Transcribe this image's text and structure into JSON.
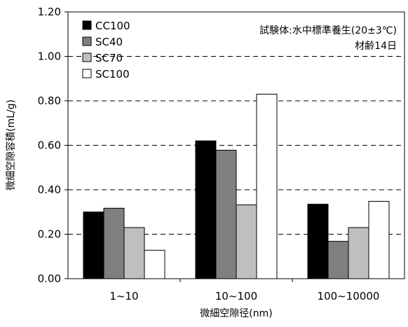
{
  "chart_data": {
    "type": "bar",
    "title": "",
    "xlabel": "微細空隙径(nm)",
    "ylabel": "微細空隙容積(mL/g)",
    "ylim": [
      0,
      1.2
    ],
    "yticks": [
      "0.00",
      "0.20",
      "0.40",
      "0.60",
      "0.80",
      "1.00",
      "1.20"
    ],
    "categories": [
      "1~10",
      "10~100",
      "100~10000"
    ],
    "series": [
      {
        "name": "CC100",
        "values": [
          0.3,
          0.62,
          0.335
        ],
        "color": "#000000"
      },
      {
        "name": "SC40",
        "values": [
          0.317,
          0.578,
          0.168
        ],
        "color": "#7f7f7f"
      },
      {
        "name": "SC70",
        "values": [
          0.23,
          0.332,
          0.23
        ],
        "color": "#bfbfbf"
      },
      {
        "name": "SC100",
        "values": [
          0.128,
          0.83,
          0.348
        ],
        "color": "#ffffff"
      }
    ],
    "grid": "horizontal-dashed",
    "legend_position": "top-left",
    "annotation": [
      "試験体:水中標準養生(20±3℃)",
      "材齢14日"
    ]
  }
}
